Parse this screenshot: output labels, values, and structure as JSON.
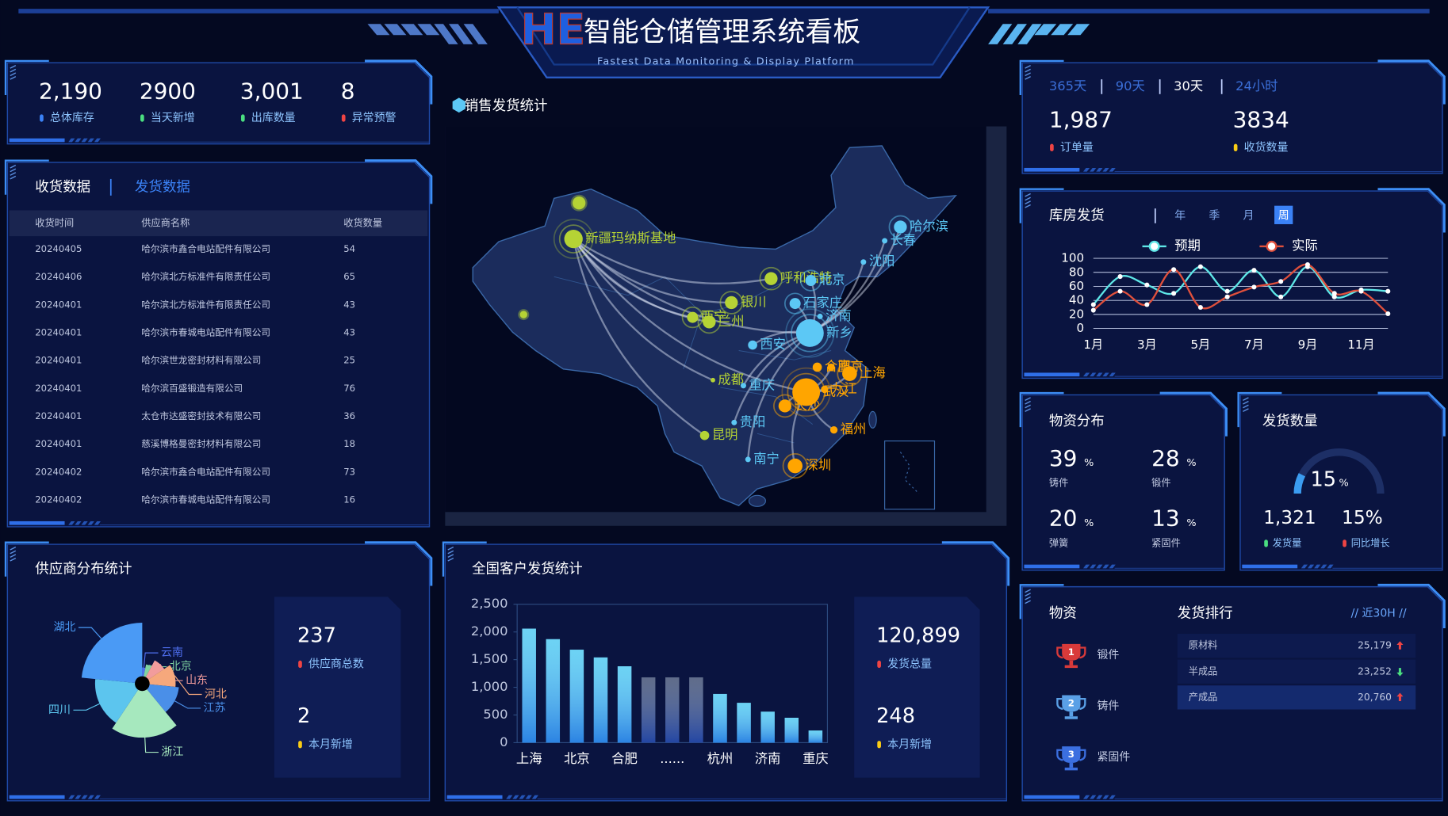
{
  "header": {
    "logo": "HE",
    "title": "智能仓储管理系统看板",
    "subtitle": "Fastest Data Monitoring & Display Platform"
  },
  "inventory_stats": [
    {
      "value": "2,190",
      "label": "总体库存",
      "color": "#3b82f6"
    },
    {
      "value": "2900",
      "label": "当天新增",
      "color": "#4ade80"
    },
    {
      "value": "3,001",
      "label": "出库数量",
      "color": "#4ade80"
    },
    {
      "value": "8",
      "label": "异常预警",
      "color": "#ef4444"
    }
  ],
  "receiving": {
    "tabs": [
      "收货数据",
      "发货数据"
    ],
    "active_tab": 0,
    "columns": [
      "收货时间",
      "供应商名称",
      "收货数量"
    ],
    "rows": [
      [
        "20240405",
        "哈尔滨市鑫合电站配件有限公司",
        "54"
      ],
      [
        "20240406",
        "哈尔滨北方标准件有限责任公司",
        "65"
      ],
      [
        "20240401",
        "哈尔滨北方标准件有限责任公司",
        "43"
      ],
      [
        "20240401",
        "哈尔滨市春城电站配件有限公司",
        "43"
      ],
      [
        "20240401",
        "哈尔滨世龙密封材料有限公司",
        "25"
      ],
      [
        "20240401",
        "哈尔滨百盛锻造有限公司",
        "76"
      ],
      [
        "20240401",
        "太仓市达盛密封技术有限公司",
        "36"
      ],
      [
        "20240401",
        "慈溪博格曼密封材料有限公司",
        "18"
      ],
      [
        "20240402",
        "哈尔滨市鑫合电站配件有限公司",
        "73"
      ],
      [
        "20240402",
        "哈尔滨市春城电站配件有限公司",
        "16"
      ]
    ]
  },
  "map": {
    "title": "销售发货统计",
    "cities": [
      {
        "name": "新疆玛纳斯基地",
        "color": "#b5d335"
      },
      {
        "name": "呼和浩特",
        "color": "#b5d335"
      },
      {
        "name": "银川",
        "color": "#b5d335"
      },
      {
        "name": "西宁",
        "color": "#b5d335"
      },
      {
        "name": "兰州",
        "color": "#b5d335"
      },
      {
        "name": "成都",
        "color": "#b5d335"
      },
      {
        "name": "昆明",
        "color": "#b5d335"
      },
      {
        "name": "哈尔滨",
        "color": "#5cc8f5"
      },
      {
        "name": "长春",
        "color": "#5cc8f5"
      },
      {
        "name": "沈阳",
        "color": "#5cc8f5"
      },
      {
        "name": "北京",
        "color": "#5cc8f5"
      },
      {
        "name": "石家庄",
        "color": "#5cc8f5"
      },
      {
        "name": "济南",
        "color": "#5cc8f5"
      },
      {
        "name": "新乡",
        "color": "#5cc8f5"
      },
      {
        "name": "西安",
        "color": "#5cc8f5"
      },
      {
        "name": "重庆",
        "color": "#5cc8f5"
      },
      {
        "name": "贵阳",
        "color": "#5cc8f5"
      },
      {
        "name": "南宁",
        "color": "#5cc8f5"
      },
      {
        "name": "南京",
        "color": "#ffa500"
      },
      {
        "name": "上海",
        "color": "#ffa500"
      },
      {
        "name": "合肥",
        "color": "#ffa500"
      },
      {
        "name": "九江",
        "color": "#ffa500"
      },
      {
        "name": "武汉",
        "color": "#ffa500"
      },
      {
        "name": "长沙",
        "color": "#ffa500"
      },
      {
        "name": "福州",
        "color": "#ffa500"
      },
      {
        "name": "深圳",
        "color": "#ffa500"
      }
    ]
  },
  "orders": {
    "tabs": [
      "365天",
      "90天",
      "30天",
      "24小时"
    ],
    "active_tab": 2,
    "stats": [
      {
        "value": "1,987",
        "label": "订单量",
        "color": "#ef4444"
      },
      {
        "value": "3834",
        "label": "收货数量",
        "color": "#facc15"
      }
    ]
  },
  "warehouse_shipping": {
    "type": "line",
    "title": "库房发货",
    "tabs": [
      "年",
      "季",
      "月",
      "周"
    ],
    "active_tab": 3,
    "categories": [
      "1月",
      null,
      "3月",
      null,
      "5月",
      null,
      "7月",
      null,
      "9月",
      null,
      "11月",
      null
    ],
    "series": [
      {
        "name": "预期",
        "color": "#5ee7e7",
        "values": [
          34,
          74,
          62,
          50,
          88,
          53,
          83,
          45,
          88,
          45,
          55,
          53
        ]
      },
      {
        "name": "实际",
        "color": "#e0503c",
        "values": [
          26,
          53,
          34,
          84,
          30,
          45,
          59,
          67,
          91,
          50,
          53,
          21
        ]
      }
    ],
    "ylim": [
      0,
      100
    ],
    "yticks": [
      0,
      20,
      40,
      60,
      80,
      100
    ],
    "grid": true
  },
  "material_distribution": {
    "title": "物资分布",
    "items": [
      {
        "value": "39",
        "unit": "%",
        "label": "铸件"
      },
      {
        "value": "28",
        "unit": "%",
        "label": "锻件"
      },
      {
        "value": "20",
        "unit": "%",
        "label": "弹簧"
      },
      {
        "value": "13",
        "unit": "%",
        "label": "紧固件"
      }
    ]
  },
  "shipping_quantity": {
    "title": "发货数量",
    "gauge": {
      "value": 15,
      "unit": "%"
    },
    "stats": [
      {
        "value": "1,321",
        "label": "发货量",
        "color": "#4ade80"
      },
      {
        "value": "15%",
        "label": "同比增长",
        "color": "#ef4444"
      }
    ]
  },
  "ranking": {
    "material_header": "物资",
    "materials": [
      {
        "rank": "1",
        "name": "锻件",
        "color": "#d93a3a"
      },
      {
        "rank": "2",
        "name": "铸件",
        "color": "#5aa0e6"
      },
      {
        "rank": "3",
        "name": "紧固件",
        "color": "#3b6fe0"
      }
    ],
    "title": "发货排行",
    "period": "// 近30H //",
    "rows": [
      {
        "name": "原材料",
        "value": "25,179",
        "trend": "up"
      },
      {
        "name": "半成品",
        "value": "23,252",
        "trend": "down"
      },
      {
        "name": "产成品",
        "value": "20,760",
        "trend": "up"
      }
    ]
  },
  "supplier_distribution": {
    "type": "pie",
    "rose": true,
    "title": "供应商分布统计",
    "categories": [
      "云南",
      "北京",
      "山东",
      "河北",
      "江苏",
      "浙江",
      "四川",
      "湖北"
    ],
    "values": [
      4,
      6,
      10,
      14,
      16,
      26,
      22,
      30
    ],
    "colors": [
      "#4f6ff0",
      "#7fd3a0",
      "#f29c9c",
      "#f6a87c",
      "#4a8fe8",
      "#a6e8be",
      "#5cc5ee",
      "#4a9af5"
    ],
    "stats": [
      {
        "value": "237",
        "label": "供应商总数",
        "color": "#ef4444"
      },
      {
        "value": "2",
        "label": "本月新增",
        "color": "#facc15"
      }
    ]
  },
  "customer_shipping": {
    "type": "bar",
    "title": "全国客户发货统计",
    "categories": [
      "上海",
      null,
      "北京",
      null,
      "合肥",
      null,
      "......",
      null,
      "杭州",
      null,
      "济南",
      null,
      "重庆"
    ],
    "values": [
      2060,
      1870,
      1680,
      1540,
      1380,
      1180,
      1180,
      1180,
      880,
      720,
      560,
      450,
      220
    ],
    "colors": [
      "#3cc4f0",
      "#3cc4f0",
      "#3cc4f0",
      "#3cc4f0",
      "#3cc4f0",
      "#2a3b63",
      "#2a3b63",
      "#2a3b63",
      "#3cc4f0",
      "#3cc4f0",
      "#3cc4f0",
      "#3cc4f0",
      "#3cc4f0"
    ],
    "ylim": [
      0,
      2500
    ],
    "yticks": [
      0,
      500,
      {
        "value": 1000,
        "label": "1,000"
      },
      {
        "value": 1500,
        "label": "1,500"
      },
      {
        "value": 2000,
        "label": "2,000"
      },
      {
        "value": 2500,
        "label": "2,500"
      }
    ],
    "stats": [
      {
        "value": "120,899",
        "label": "发货总量",
        "color": "#ef4444"
      },
      {
        "value": "248",
        "label": "本月新增",
        "color": "#facc15"
      }
    ]
  }
}
